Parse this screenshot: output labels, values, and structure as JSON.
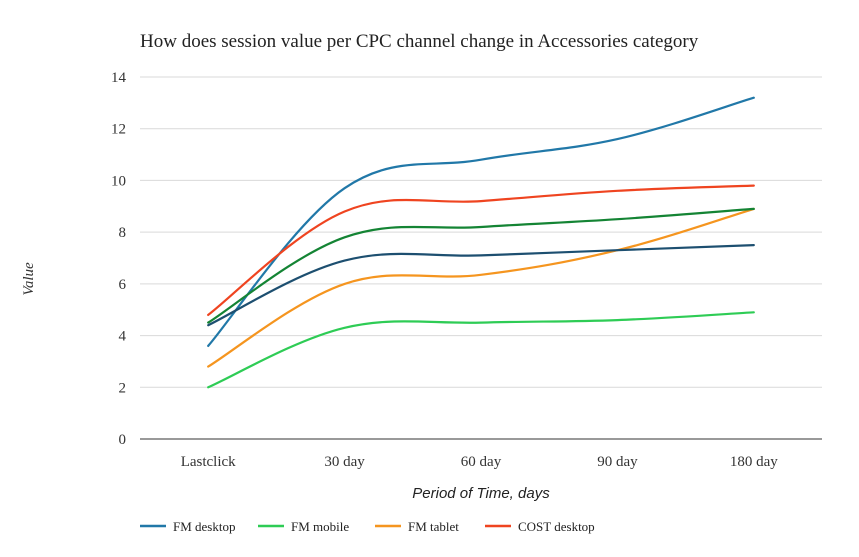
{
  "chart_data": {
    "type": "line",
    "title": "How does session value per CPC channel change in Accessories category",
    "xlabel": "Period of Time, days",
    "ylabel": "Value",
    "categories": [
      "Lastclick",
      "30 day",
      "60 day",
      "90 day",
      "180 day"
    ],
    "ylim": [
      0,
      14
    ],
    "yticks": [
      0,
      2,
      4,
      6,
      8,
      10,
      12,
      14
    ],
    "grid": true,
    "legend_position": "bottom-left",
    "series": [
      {
        "name": "FM desktop",
        "color": "#2178a8",
        "values": [
          3.6,
          9.7,
          10.8,
          11.6,
          13.2
        ],
        "in_legend": true
      },
      {
        "name": "FM mobile",
        "color": "#2ecc55",
        "values": [
          2.0,
          4.3,
          4.5,
          4.6,
          4.9
        ],
        "in_legend": true
      },
      {
        "name": "FM tablet",
        "color": "#f5951f",
        "values": [
          2.8,
          6.0,
          6.35,
          7.3,
          8.9
        ],
        "in_legend": true
      },
      {
        "name": "COST desktop",
        "color": "#ef4420",
        "values": [
          4.8,
          8.8,
          9.2,
          9.6,
          9.8
        ],
        "in_legend": true
      },
      {
        "name": "",
        "color": "#148434",
        "values": [
          4.5,
          7.8,
          8.2,
          8.5,
          8.9
        ],
        "in_legend": false
      },
      {
        "name": "",
        "color": "#1d4f70",
        "values": [
          4.4,
          6.9,
          7.1,
          7.3,
          7.5
        ],
        "in_legend": false
      }
    ]
  }
}
